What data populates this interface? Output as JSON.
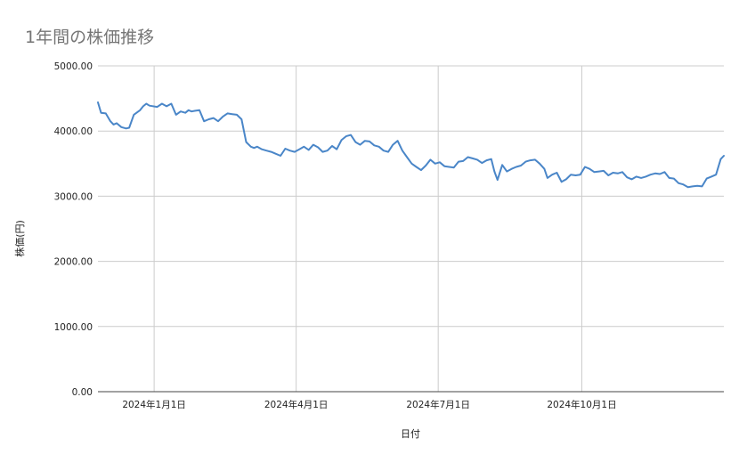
{
  "chart_data": {
    "type": "line",
    "title": "1年間の株価推移",
    "xlabel": "日付",
    "ylabel": "株価(円)",
    "ylim": [
      0,
      5000
    ],
    "y_ticks": [
      "0.00",
      "1000.00",
      "2000.00",
      "3000.00",
      "4000.00",
      "5000.00"
    ],
    "x_ticks": [
      {
        "date": "2024-01-01",
        "label": "2024年1月1日"
      },
      {
        "date": "2024-04-01",
        "label": "2024年4月1日"
      },
      {
        "date": "2024-07-01",
        "label": "2024年7月1日"
      },
      {
        "date": "2024-10-01",
        "label": "2024年10月1日"
      }
    ],
    "x_range": [
      "2023-11-26",
      "2024-12-31"
    ],
    "grid": true,
    "line_color": "#4a86c8",
    "series": [
      {
        "x": [
          "2023-11-26",
          "2023-11-28",
          "2023-12-01",
          "2023-12-04",
          "2023-12-06",
          "2023-12-08",
          "2023-12-11",
          "2023-12-14",
          "2023-12-16",
          "2023-12-19",
          "2023-12-23",
          "2023-12-25",
          "2023-12-27",
          "2023-12-29",
          "2024-01-03",
          "2024-01-06",
          "2024-01-09",
          "2024-01-12",
          "2024-01-15",
          "2024-01-18",
          "2024-01-21",
          "2024-01-23",
          "2024-01-25",
          "2024-01-27",
          "2024-01-30",
          "2024-02-02",
          "2024-02-05",
          "2024-02-08",
          "2024-02-11",
          "2024-02-14",
          "2024-02-17",
          "2024-02-20",
          "2024-02-23",
          "2024-02-26",
          "2024-02-29",
          "2024-03-03",
          "2024-03-05",
          "2024-03-07",
          "2024-03-10",
          "2024-03-13",
          "2024-03-16",
          "2024-03-19",
          "2024-03-22",
          "2024-03-25",
          "2024-03-28",
          "2024-03-31",
          "2024-04-03",
          "2024-04-06",
          "2024-04-09",
          "2024-04-12",
          "2024-04-15",
          "2024-04-18",
          "2024-04-21",
          "2024-04-24",
          "2024-04-27",
          "2024-04-30",
          "2024-05-03",
          "2024-05-06",
          "2024-05-09",
          "2024-05-12",
          "2024-05-15",
          "2024-05-18",
          "2024-05-21",
          "2024-05-24",
          "2024-05-27",
          "2024-05-30",
          "2024-06-02",
          "2024-06-05",
          "2024-06-08",
          "2024-06-11",
          "2024-06-14",
          "2024-06-17",
          "2024-06-20",
          "2024-06-23",
          "2024-06-26",
          "2024-06-29",
          "2024-07-02",
          "2024-07-05",
          "2024-07-08",
          "2024-07-11",
          "2024-07-14",
          "2024-07-17",
          "2024-07-20",
          "2024-07-23",
          "2024-07-26",
          "2024-07-29",
          "2024-08-01",
          "2024-08-04",
          "2024-08-06",
          "2024-08-08",
          "2024-08-11",
          "2024-08-14",
          "2024-08-17",
          "2024-08-20",
          "2024-08-23",
          "2024-08-26",
          "2024-08-29",
          "2024-09-01",
          "2024-09-04",
          "2024-09-07",
          "2024-09-09",
          "2024-09-12",
          "2024-09-15",
          "2024-09-18",
          "2024-09-21",
          "2024-09-24",
          "2024-09-27",
          "2024-09-30",
          "2024-10-03",
          "2024-10-06",
          "2024-10-09",
          "2024-10-12",
          "2024-10-15",
          "2024-10-18",
          "2024-10-21",
          "2024-10-24",
          "2024-10-27",
          "2024-10-30",
          "2024-11-02",
          "2024-11-05",
          "2024-11-08",
          "2024-11-11",
          "2024-11-14",
          "2024-11-17",
          "2024-11-20",
          "2024-11-23",
          "2024-11-26",
          "2024-11-29",
          "2024-12-02",
          "2024-12-05",
          "2024-12-08",
          "2024-12-11",
          "2024-12-14",
          "2024-12-17",
          "2024-12-20",
          "2024-12-23",
          "2024-12-26",
          "2024-12-29",
          "2024-12-31"
        ],
        "y": [
          4440,
          4280,
          4270,
          4150,
          4100,
          4120,
          4060,
          4040,
          4050,
          4250,
          4320,
          4380,
          4420,
          4390,
          4370,
          4420,
          4380,
          4420,
          4250,
          4300,
          4280,
          4320,
          4300,
          4310,
          4320,
          4150,
          4180,
          4200,
          4150,
          4220,
          4270,
          4260,
          4250,
          4180,
          3830,
          3760,
          3740,
          3760,
          3720,
          3700,
          3680,
          3650,
          3620,
          3730,
          3700,
          3680,
          3720,
          3760,
          3710,
          3790,
          3750,
          3680,
          3700,
          3770,
          3720,
          3860,
          3920,
          3940,
          3830,
          3790,
          3850,
          3840,
          3780,
          3760,
          3700,
          3680,
          3790,
          3850,
          3700,
          3600,
          3500,
          3450,
          3400,
          3470,
          3560,
          3500,
          3520,
          3460,
          3450,
          3440,
          3530,
          3540,
          3600,
          3580,
          3560,
          3510,
          3550,
          3570,
          3380,
          3250,
          3480,
          3380,
          3420,
          3450,
          3470,
          3530,
          3550,
          3560,
          3500,
          3420,
          3280,
          3330,
          3360,
          3220,
          3260,
          3330,
          3320,
          3330,
          3450,
          3420,
          3370,
          3380,
          3390,
          3320,
          3360,
          3350,
          3370,
          3290,
          3260,
          3300,
          3280,
          3300,
          3330,
          3350,
          3340,
          3370,
          3280,
          3270,
          3200,
          3180,
          3140,
          3150,
          3160,
          3150,
          3270,
          3300,
          3330,
          3570,
          3620
        ]
      }
    ]
  }
}
